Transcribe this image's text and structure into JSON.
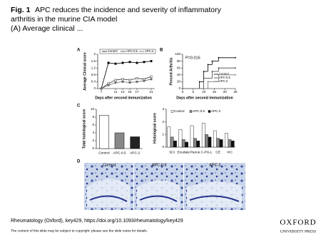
{
  "slide": {
    "title": {
      "label": "Fig. 1",
      "lines": [
        "APC reduces the incidence and severity of inflammatory",
        "arthritis in the murine CIA model",
        "(A) Average clinical ..."
      ]
    },
    "figure": {
      "panel_a": {
        "letter": "A",
        "ylabel": "Average Clinical score",
        "xlabel": "Days after second immunization",
        "ylim": [
          0,
          2
        ],
        "yticks": [
          0,
          0.4,
          0.8,
          1.2,
          1.6,
          2
        ],
        "xlim": [
          6,
          22
        ],
        "xticks": [
          7,
          11,
          13,
          15,
          17,
          21
        ],
        "x": [
          7,
          9,
          11,
          13,
          15,
          17,
          19,
          21
        ],
        "series": [
          {
            "name": "Control",
            "color": "#000",
            "values": [
              0,
              1.5,
              1.45,
              1.5,
              1.55,
              1.5,
              1.55,
              1.6
            ]
          },
          {
            "name": "APC-0.5",
            "color": "#333",
            "values": [
              0,
              0.3,
              0.5,
              0.55,
              0.5,
              0.6,
              0.55,
              0.7
            ]
          },
          {
            "name": "APC-2",
            "color": "#666",
            "values": [
              0,
              0.2,
              0.35,
              0.4,
              0.35,
              0.4,
              0.45,
              0.55
            ]
          }
        ]
      },
      "panel_b": {
        "letter": "B",
        "ylabel": "Percent Arthritis",
        "xlabel": "Days after second immunization",
        "annotation": "P=0.016",
        "ylim": [
          0,
          100
        ],
        "yticks": [
          0,
          20,
          40,
          60,
          80,
          100
        ],
        "xlim": [
          0,
          25
        ],
        "xticks": [
          0,
          5,
          10,
          15,
          20,
          25
        ],
        "series": [
          {
            "name": "Control",
            "color": "#000",
            "x": [
              0,
              8,
              10,
              12,
              14,
              17,
              25
            ],
            "values": [
              0,
              20,
              50,
              70,
              80,
              90,
              90
            ]
          },
          {
            "name": "APC-0.5",
            "color": "#444",
            "x": [
              0,
              10,
              14,
              17,
              25
            ],
            "values": [
              0,
              30,
              50,
              60,
              60
            ]
          },
          {
            "name": "APC-2",
            "color": "#777",
            "x": [
              0,
              12,
              17,
              25
            ],
            "values": [
              0,
              20,
              40,
              40
            ]
          }
        ]
      },
      "panel_c_total": {
        "letter": "C",
        "ylabel": "Total histological score",
        "ylim": [
          0,
          10
        ],
        "yticks": [
          0,
          2,
          4,
          6,
          8,
          10
        ],
        "categories": [
          "Control",
          "APC-0.5",
          "APC-2"
        ],
        "values": [
          8.5,
          4,
          3
        ],
        "colors": [
          "#fff",
          "#888",
          "#222"
        ]
      },
      "panel_c_sub": {
        "ylabel": "Histological score",
        "ylim": [
          0,
          3
        ],
        "yticks": [
          0,
          1,
          2,
          3
        ],
        "categories": [
          "SCI",
          "Exudate",
          "Panus",
          "C-PG-L",
          "CE",
          "VIC"
        ],
        "series": [
          {
            "name": "Control",
            "color": "#fff",
            "values": [
              1.6,
              1.4,
              1.7,
              1.9,
              1.3,
              1.1
            ]
          },
          {
            "name": "APC-0.5",
            "color": "#888",
            "values": [
              0.8,
              0.6,
              0.7,
              1.0,
              0.7,
              0.6
            ]
          },
          {
            "name": "APC-2",
            "color": "#111",
            "values": [
              0.5,
              0.4,
              0.5,
              0.8,
              0.6,
              0.5
            ]
          }
        ]
      },
      "panel_d": {
        "letter": "D",
        "labels": [
          "Control",
          "APC-0.5",
          "APC-2"
        ]
      }
    },
    "footer": {
      "citation": "Rheumatology (Oxford), key429, https://doi.org/10.1093/rheumatology/key429",
      "note": "The content of this slide may be subject to copyright: please see the slide notes for details."
    },
    "logo": {
      "name": "OXFORD",
      "sub": "UNIVERSITY PRESS"
    }
  }
}
